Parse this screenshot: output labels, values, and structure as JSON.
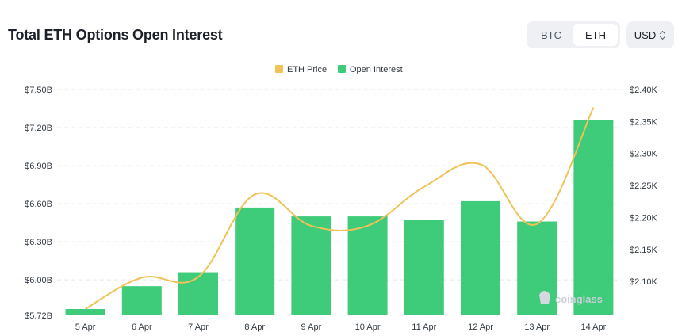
{
  "header": {
    "title": "Total ETH Options Open Interest",
    "toggle": [
      "BTC",
      "ETH"
    ],
    "toggle_active": "ETH",
    "currency": "USD"
  },
  "watermark": "coinglass",
  "colors": {
    "bar": "#3ecb7a",
    "line": "#f0c257",
    "grid": "#e6e8ec"
  },
  "chart_data": {
    "type": "bar",
    "categories": [
      "5 Apr",
      "6 Apr",
      "7 Apr",
      "8 Apr",
      "9 Apr",
      "10 Apr",
      "11 Apr",
      "12 Apr",
      "13 Apr",
      "14 Apr"
    ],
    "series": [
      {
        "name": "Open Interest",
        "type": "bar",
        "axis": "left",
        "values": [
          5.77,
          5.95,
          6.06,
          6.57,
          6.5,
          6.5,
          6.47,
          6.62,
          6.46,
          7.26
        ]
      },
      {
        "name": "ETH Price",
        "type": "line",
        "axis": "right",
        "smooth": true,
        "values": [
          2057,
          2106,
          2107,
          2236,
          2187,
          2187,
          2248,
          2283,
          2190,
          2372
        ]
      }
    ],
    "y_left": {
      "ticks": [
        5.72,
        6.0,
        6.3,
        6.6,
        6.9,
        7.2,
        7.5
      ],
      "tick_labels": [
        "$5.72B",
        "$6.00B",
        "$6.30B",
        "$6.60B",
        "$6.90B",
        "$7.20B",
        "$7.50B"
      ],
      "range": [
        5.72,
        7.5
      ]
    },
    "y_right": {
      "ticks": [
        2100,
        2150,
        2200,
        2250,
        2300,
        2350,
        2400
      ],
      "tick_labels": [
        "$2.10K",
        "$2.15K",
        "$2.20K",
        "$2.25K",
        "$2.30K",
        "$2.35K",
        "$2.40K"
      ],
      "range": [
        2047,
        2400
      ]
    },
    "legend": [
      "ETH Price",
      "Open Interest"
    ],
    "legend_position": "top-center",
    "grid": true
  }
}
